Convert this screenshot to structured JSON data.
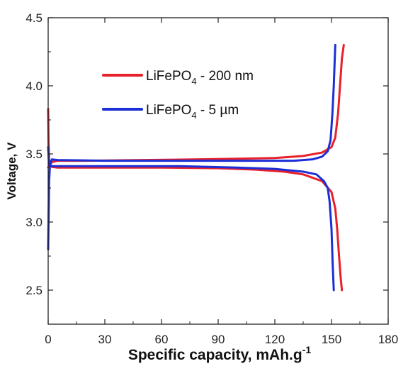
{
  "chart_data": {
    "type": "line",
    "title": "",
    "xlabel": "Specific capacity, mAh.g",
    "xlabel_superscript": "-1",
    "ylabel": "Voltage, V",
    "xlim": [
      0,
      180
    ],
    "ylim": [
      2.25,
      4.5
    ],
    "xticks": [
      0,
      30,
      60,
      90,
      120,
      150,
      180
    ],
    "yticks": [
      2.5,
      3.0,
      3.5,
      4.0,
      4.5
    ],
    "ytick_labels": [
      "2.5",
      "3.0",
      "3.5",
      "4.0",
      "4.5"
    ],
    "grid": false,
    "legend_placement": "upper-left",
    "series": [
      {
        "name": "LiFePO4 - 200 nm",
        "legend_main": "LiFePO",
        "legend_sub": "4",
        "legend_rest": " - 200 nm",
        "color": "#e8202a",
        "charge": {
          "x": [
            0,
            1,
            2,
            5,
            20,
            50,
            80,
            100,
            120,
            135,
            145,
            150,
            152,
            153.5,
            154.5,
            155.5,
            156.5
          ],
          "y": [
            3.4,
            3.42,
            3.44,
            3.45,
            3.45,
            3.455,
            3.46,
            3.465,
            3.47,
            3.485,
            3.51,
            3.55,
            3.62,
            3.8,
            4.0,
            4.2,
            4.3
          ]
        },
        "discharge": {
          "x": [
            0,
            0.2,
            0.5,
            1,
            2,
            5,
            30,
            60,
            90,
            110,
            125,
            135,
            145,
            150,
            152,
            153,
            154,
            154.8,
            155.5
          ],
          "y": [
            3.83,
            3.6,
            3.45,
            3.41,
            3.405,
            3.4,
            3.4,
            3.4,
            3.395,
            3.385,
            3.37,
            3.35,
            3.3,
            3.22,
            3.1,
            2.95,
            2.75,
            2.6,
            2.5
          ]
        }
      },
      {
        "name": "LiFePO4 - 5 µm",
        "legend_main": "LiFePO",
        "legend_sub": "4",
        "legend_rest": " - 5 µm",
        "color": "#1c2fd6",
        "charge": {
          "x": [
            0,
            0.5,
            1,
            2,
            5,
            30,
            60,
            90,
            110,
            130,
            140,
            145,
            148,
            149.5,
            150.5,
            151.2,
            152
          ],
          "y": [
            2.8,
            3.3,
            3.43,
            3.46,
            3.455,
            3.45,
            3.45,
            3.45,
            3.45,
            3.45,
            3.46,
            3.48,
            3.52,
            3.6,
            3.8,
            4.0,
            4.3
          ]
        },
        "discharge": {
          "x": [
            0,
            0.5,
            2,
            10,
            40,
            70,
            100,
            120,
            135,
            142,
            146,
            148,
            149,
            150,
            150.6,
            151.2
          ],
          "y": [
            3.55,
            3.42,
            3.41,
            3.41,
            3.41,
            3.41,
            3.4,
            3.39,
            3.37,
            3.35,
            3.3,
            3.25,
            3.15,
            2.95,
            2.7,
            2.5
          ]
        }
      }
    ]
  }
}
